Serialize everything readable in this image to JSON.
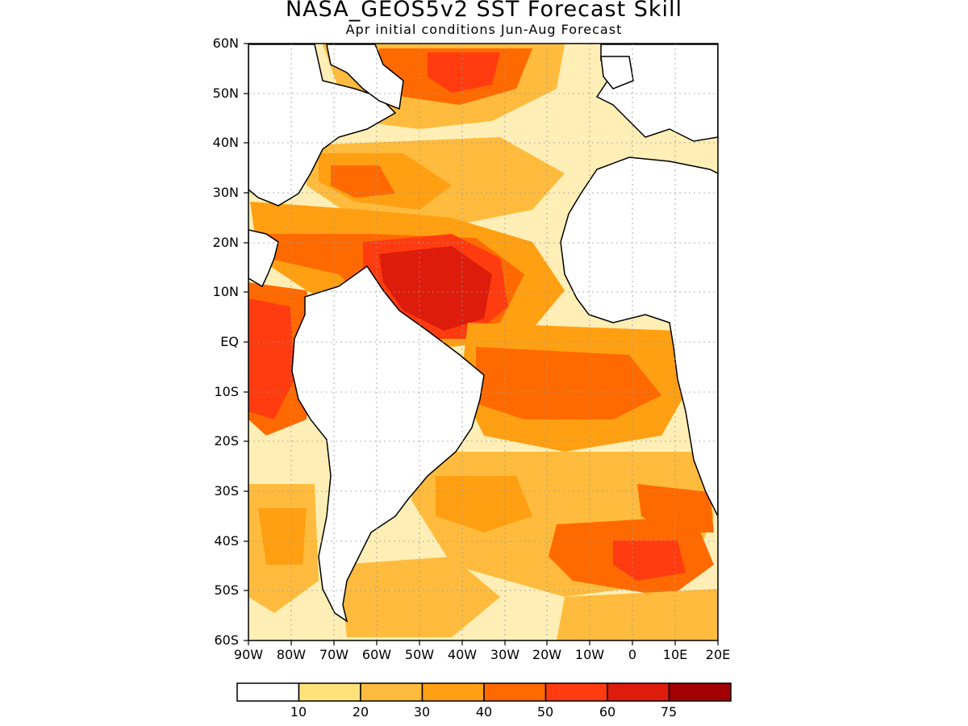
{
  "title": "NASA_GEOS5v2 SST Forecast Skill",
  "subtitle": "Apr initial conditions   Jun-Aug Forecast",
  "map": {
    "lat_range": [
      -60,
      60
    ],
    "lon_range": [
      -90,
      20
    ],
    "grid": true,
    "y_labels": [
      "60N",
      "50N",
      "40N",
      "30N",
      "20N",
      "10N",
      "EQ",
      "10S",
      "20S",
      "30S",
      "40S",
      "50S",
      "60S"
    ],
    "x_labels": [
      "90W",
      "80W",
      "70W",
      "60W",
      "50W",
      "40W",
      "30W",
      "20W",
      "10W",
      "0",
      "10E",
      "20E"
    ]
  },
  "colorbar": {
    "colors": [
      "#ffffff",
      "#ffe27a",
      "#ffbb3d",
      "#ff9f12",
      "#ff6a00",
      "#ff3b10",
      "#dd1c0b",
      "#a30004"
    ],
    "labels": [
      "10",
      "20",
      "30",
      "40",
      "50",
      "60",
      "75"
    ]
  }
}
